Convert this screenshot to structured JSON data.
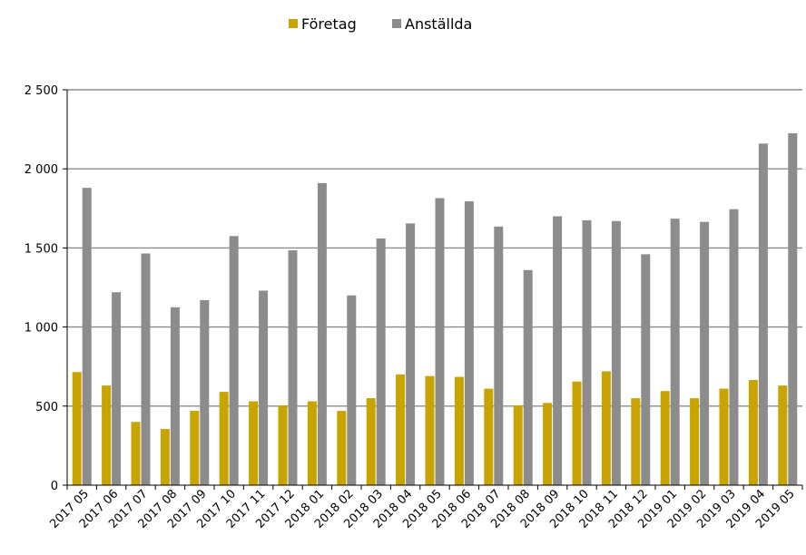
{
  "chart_data": {
    "type": "bar",
    "title": "",
    "xlabel": "",
    "ylabel": "",
    "categories": [
      "2017 05",
      "2017 06",
      "2017 07",
      "2017 08",
      "2017 09",
      "2017 10",
      "2017 11",
      "2017 12",
      "2018 01",
      "2018 02",
      "2018 03",
      "2018 04",
      "2018 05",
      "2018 06",
      "2018 07",
      "2018 08",
      "2018 09",
      "2018 10",
      "2018 11",
      "2018 12",
      "2019 01",
      "2019 02",
      "2019 03",
      "2019 04",
      "2019 05"
    ],
    "series": [
      {
        "name": "Företag",
        "color": "#C9A400",
        "values": [
          715,
          630,
          400,
          355,
          470,
          590,
          530,
          505,
          530,
          470,
          550,
          700,
          690,
          685,
          610,
          505,
          520,
          655,
          720,
          550,
          595,
          550,
          610,
          665,
          630
        ]
      },
      {
        "name": "Anställda",
        "color": "#8C8C8C",
        "values": [
          1880,
          1220,
          1465,
          1125,
          1170,
          1575,
          1230,
          1485,
          1910,
          1200,
          1560,
          1655,
          1815,
          1795,
          1635,
          1360,
          1700,
          1675,
          1670,
          1460,
          1685,
          1665,
          1745,
          2160,
          2225
        ]
      }
    ],
    "ylim": [
      0,
      2500
    ],
    "yticks": [
      0,
      500,
      1000,
      1500,
      2000,
      2500
    ],
    "ytick_labels": [
      "0",
      "500",
      "1 000",
      "1 500",
      "2 000",
      "2 500"
    ],
    "grid": true,
    "legend": {
      "position": "top-center"
    }
  }
}
